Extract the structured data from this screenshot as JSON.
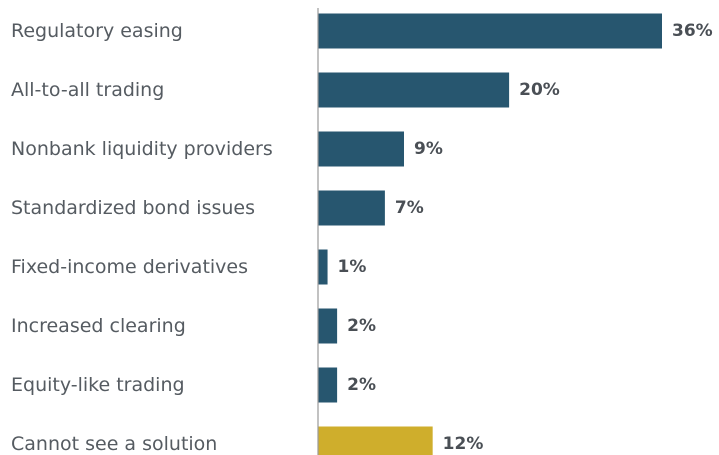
{
  "chart_data": {
    "type": "bar",
    "orientation": "horizontal",
    "categories": [
      "Regulatory easing",
      "All-to-all trading",
      "Nonbank liquidity providers",
      "Standardized bond issues",
      "Fixed-income derivatives",
      "Increased clearing",
      "Equity-like trading",
      "Cannot see a solution"
    ],
    "values": [
      36,
      20,
      9,
      7,
      1,
      2,
      2,
      12
    ],
    "value_labels": [
      "36%",
      "20%",
      "9%",
      "7%",
      "1%",
      "2%",
      "2%",
      "12%"
    ],
    "bar_colors": [
      "#27566f",
      "#27566f",
      "#27566f",
      "#27566f",
      "#27566f",
      "#27566f",
      "#27566f",
      "#cfae2c"
    ],
    "axis_color": "#9a9a9a",
    "xlim": [
      0,
      36
    ],
    "grid": false,
    "legend": "none"
  }
}
